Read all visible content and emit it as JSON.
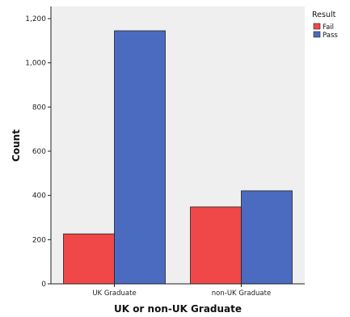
{
  "chart_data": {
    "type": "bar",
    "xlabel": "UK or non-UK Graduate",
    "ylabel": "Count",
    "categories": [
      "UK Graduate",
      "non-UK Graduate"
    ],
    "series": [
      {
        "name": "Fail",
        "values": [
          226,
          348
        ],
        "color": "#f04848"
      },
      {
        "name": "Pass",
        "values": [
          1145,
          421
        ],
        "color": "#4a6bc0"
      }
    ],
    "ylim": [
      0,
      1200
    ],
    "yticks": [
      0,
      200,
      400,
      600,
      800,
      1000,
      1200
    ],
    "ytick_labels": [
      "0",
      "200",
      "400",
      "600",
      "800",
      "1,000",
      "1,200"
    ],
    "legend": {
      "title": "Result",
      "position": "top-right"
    },
    "plot_background": "#efefef",
    "grid": false
  }
}
